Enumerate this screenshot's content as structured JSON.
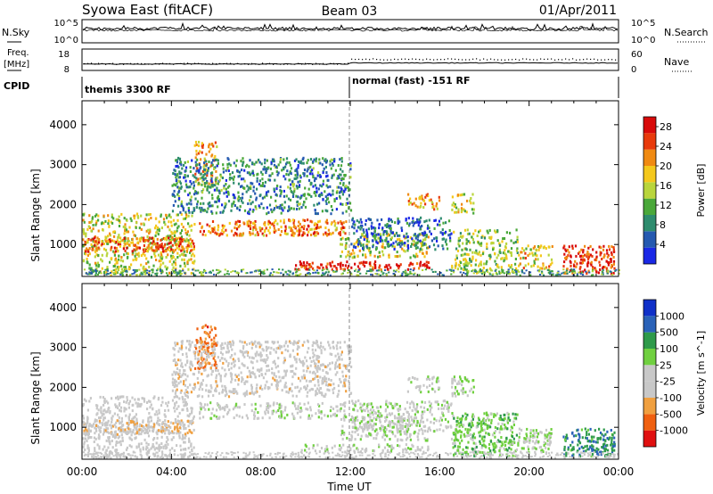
{
  "header": {
    "station": "Syowa East (fitACF)",
    "beam": "Beam 03",
    "date": "01/Apr/2011"
  },
  "noise_panel": {
    "left_label": "N.Sky",
    "right_label": "N.Search",
    "left_ticks": [
      "10^5",
      "10^0"
    ],
    "right_ticks": [
      "10^5",
      "10^0"
    ]
  },
  "freq_panel": {
    "left_label_1": "Freq.",
    "left_label_2": "[MHz]",
    "right_label": "Nave",
    "left_ticks": [
      "18",
      "8"
    ],
    "right_ticks": [
      "60",
      "0"
    ],
    "freq_mhz_values": [
      11.0,
      11.5
    ]
  },
  "cpid": {
    "label": "CPID",
    "segments": [
      {
        "start_hour": 0,
        "end_hour": 12,
        "text": "themis 3300 RF"
      },
      {
        "start_hour": 12,
        "end_hour": 24,
        "text": "normal (fast) -151 RF"
      }
    ]
  },
  "colors": {
    "power": [
      "#1a28e6",
      "#2559b0",
      "#2e8c6e",
      "#4aa83a",
      "#b9d53c",
      "#f4c81c",
      "#f08a12",
      "#e83a0c",
      "#d80a0a"
    ],
    "velocity": [
      "#e01010",
      "#f06010",
      "#f0a040",
      "#c8c8c8",
      "#c8c8c8",
      "#70d040",
      "#2e9a4a",
      "#2a62b8",
      "#1030c8"
    ]
  },
  "chart_data": [
    {
      "type": "heatmap",
      "title": "",
      "xlabel": "",
      "ylabel": "Slant Range [km]",
      "xlim": [
        0,
        24
      ],
      "ylim": [
        200,
        4600
      ],
      "x_ticks": [
        "00:00",
        "04:00",
        "08:00",
        "12:00",
        "16:00",
        "20:00",
        "00:00"
      ],
      "y_ticks": [
        1000,
        2000,
        3000,
        4000
      ],
      "colorbar_label": "Power [dB]",
      "colorbar_ticks": [
        4,
        8,
        12,
        16,
        20,
        24,
        28
      ],
      "colorbar_range": [
        0,
        30
      ],
      "regions": [
        {
          "t0": 0.0,
          "t1": 5.0,
          "r0": 250,
          "r1": 1800,
          "value": 16
        },
        {
          "t0": 0.0,
          "t1": 5.0,
          "r0": 850,
          "r1": 1200,
          "value": 24
        },
        {
          "t0": 5.0,
          "t1": 6.0,
          "r0": 2500,
          "r1": 3600,
          "value": 20
        },
        {
          "t0": 5.2,
          "t1": 11.8,
          "r0": 1250,
          "r1": 1650,
          "value": 22
        },
        {
          "t0": 4.0,
          "t1": 12.0,
          "r0": 1800,
          "r1": 3200,
          "value": 8
        },
        {
          "t0": 9.5,
          "t1": 15.5,
          "r0": 400,
          "r1": 600,
          "value": 28
        },
        {
          "t0": 11.5,
          "t1": 15.5,
          "r0": 700,
          "r1": 1300,
          "value": 16
        },
        {
          "t0": 12.0,
          "t1": 16.5,
          "r0": 900,
          "r1": 1700,
          "value": 6
        },
        {
          "t0": 14.5,
          "t1": 16.0,
          "r0": 1900,
          "r1": 2300,
          "value": 20
        },
        {
          "t0": 16.5,
          "t1": 17.5,
          "r0": 1800,
          "r1": 2300,
          "value": 16
        },
        {
          "t0": 16.5,
          "t1": 19.5,
          "r0": 300,
          "r1": 1400,
          "value": 14
        },
        {
          "t0": 19.5,
          "t1": 21.0,
          "r0": 400,
          "r1": 1000,
          "value": 18
        },
        {
          "t0": 21.5,
          "t1": 23.8,
          "r0": 300,
          "r1": 1000,
          "value": 26
        }
      ]
    },
    {
      "type": "heatmap",
      "title": "",
      "xlabel": "Time UT",
      "ylabel": "Slant Range [km]",
      "xlim": [
        0,
        24
      ],
      "ylim": [
        200,
        4600
      ],
      "x_ticks": [
        "00:00",
        "04:00",
        "08:00",
        "12:00",
        "16:00",
        "20:00",
        "00:00"
      ],
      "y_ticks": [
        1000,
        2000,
        3000,
        4000
      ],
      "colorbar_label": "Velocity [m s^-1]",
      "colorbar_ticks": [
        "1000",
        "500",
        "100",
        "25",
        "-25",
        "-100",
        "-500",
        "-1000"
      ],
      "colorbar_range": [
        -1200,
        1200
      ],
      "regions": [
        {
          "t0": 0.0,
          "t1": 5.0,
          "r0": 250,
          "r1": 1800,
          "value": -150
        },
        {
          "t0": 0.0,
          "t1": 5.0,
          "r0": 850,
          "r1": 1200,
          "value": -300
        },
        {
          "t0": 5.0,
          "t1": 6.0,
          "r0": 2500,
          "r1": 3600,
          "value": -700
        },
        {
          "t0": 5.2,
          "t1": 11.8,
          "r0": 1250,
          "r1": 1650,
          "value": 0
        },
        {
          "t0": 4.0,
          "t1": 12.0,
          "r0": 1800,
          "r1": 3200,
          "value": -200
        },
        {
          "t0": 9.5,
          "t1": 15.5,
          "r0": 400,
          "r1": 600,
          "value": 10
        },
        {
          "t0": 11.5,
          "t1": 15.5,
          "r0": 700,
          "r1": 1300,
          "value": 0
        },
        {
          "t0": 12.0,
          "t1": 16.5,
          "r0": 900,
          "r1": 1700,
          "value": 20
        },
        {
          "t0": 14.5,
          "t1": 16.0,
          "r0": 1900,
          "r1": 2300,
          "value": -20
        },
        {
          "t0": 16.5,
          "t1": 17.5,
          "r0": 1800,
          "r1": 2300,
          "value": 60
        },
        {
          "t0": 16.5,
          "t1": 19.5,
          "r0": 300,
          "r1": 1400,
          "value": 300
        },
        {
          "t0": 19.5,
          "t1": 21.0,
          "r0": 400,
          "r1": 1000,
          "value": 150
        },
        {
          "t0": 21.5,
          "t1": 23.8,
          "r0": 300,
          "r1": 1000,
          "value": 600
        }
      ]
    }
  ]
}
